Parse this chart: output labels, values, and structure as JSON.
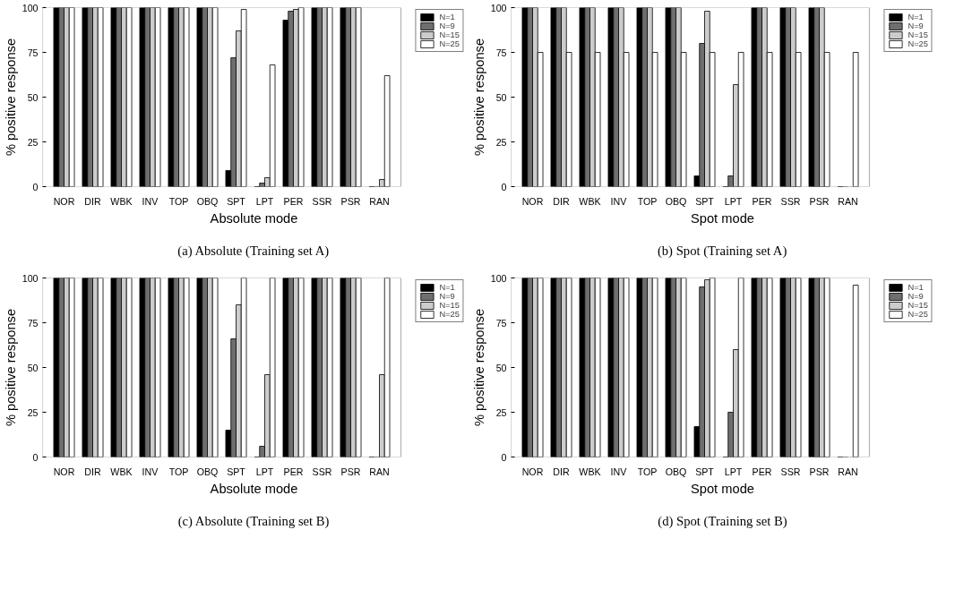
{
  "chart_data": [
    {
      "type": "bar",
      "xlabel": "Absolute mode",
      "ylabel": "% positive response",
      "annotations": [
        "(a) Absolute (Training set A)"
      ],
      "categories": [
        "NOR",
        "DIR",
        "WBK",
        "INV",
        "TOP",
        "OBQ",
        "SPT",
        "LPT",
        "PER",
        "SSR",
        "PSR",
        "RAN"
      ],
      "ylim": [
        0,
        100
      ],
      "yticks": [
        0,
        25,
        50,
        75,
        100
      ],
      "grid": false,
      "legend": "top right",
      "series": [
        {
          "name": "N=1",
          "color": "#000000",
          "values": [
            100,
            100,
            100,
            100,
            100,
            100,
            9,
            0,
            93,
            100,
            100,
            0
          ]
        },
        {
          "name": "N=9",
          "color": "#6e6e6e",
          "values": [
            100,
            100,
            100,
            100,
            100,
            100,
            72,
            2,
            98,
            100,
            100,
            0
          ]
        },
        {
          "name": "N=15",
          "color": "#cccccc",
          "values": [
            100,
            100,
            100,
            100,
            100,
            100,
            87,
            5,
            99,
            100,
            100,
            4
          ]
        },
        {
          "name": "N=25",
          "color": "#ffffff",
          "values": [
            100,
            100,
            100,
            100,
            100,
            100,
            99,
            68,
            100,
            100,
            100,
            62
          ]
        }
      ]
    },
    {
      "type": "bar",
      "xlabel": "Spot mode",
      "ylabel": "% positive response",
      "annotations": [
        "(b) Spot (Training set A)"
      ],
      "categories": [
        "NOR",
        "DIR",
        "WBK",
        "INV",
        "TOP",
        "OBQ",
        "SPT",
        "LPT",
        "PER",
        "SSR",
        "PSR",
        "RAN"
      ],
      "ylim": [
        0,
        100
      ],
      "yticks": [
        0,
        25,
        50,
        75,
        100
      ],
      "grid": false,
      "legend": "top right",
      "series": [
        {
          "name": "N=1",
          "color": "#000000",
          "values": [
            100,
            100,
            100,
            100,
            100,
            100,
            6,
            0,
            100,
            100,
            100,
            0
          ]
        },
        {
          "name": "N=9",
          "color": "#6e6e6e",
          "values": [
            100,
            100,
            100,
            100,
            100,
            100,
            80,
            6,
            100,
            100,
            100,
            0
          ]
        },
        {
          "name": "N=15",
          "color": "#cccccc",
          "values": [
            100,
            100,
            100,
            100,
            100,
            100,
            98,
            57,
            100,
            100,
            100,
            0
          ]
        },
        {
          "name": "N=25",
          "color": "#ffffff",
          "values": [
            75,
            75,
            75,
            75,
            75,
            75,
            75,
            75,
            75,
            75,
            75,
            75
          ]
        }
      ]
    },
    {
      "type": "bar",
      "xlabel": "Absolute mode",
      "ylabel": "% positive response",
      "annotations": [
        "(c) Absolute (Training set B)"
      ],
      "categories": [
        "NOR",
        "DIR",
        "WBK",
        "INV",
        "TOP",
        "OBQ",
        "SPT",
        "LPT",
        "PER",
        "SSR",
        "PSR",
        "RAN"
      ],
      "ylim": [
        0,
        100
      ],
      "yticks": [
        0,
        25,
        50,
        75,
        100
      ],
      "grid": false,
      "legend": "top right",
      "series": [
        {
          "name": "N=1",
          "color": "#000000",
          "values": [
            100,
            100,
            100,
            100,
            100,
            100,
            15,
            0,
            100,
            100,
            100,
            0
          ]
        },
        {
          "name": "N=9",
          "color": "#6e6e6e",
          "values": [
            100,
            100,
            100,
            100,
            100,
            100,
            66,
            6,
            100,
            100,
            100,
            0
          ]
        },
        {
          "name": "N=15",
          "color": "#cccccc",
          "values": [
            100,
            100,
            100,
            100,
            100,
            100,
            85,
            46,
            100,
            100,
            100,
            46
          ]
        },
        {
          "name": "N=25",
          "color": "#ffffff",
          "values": [
            100,
            100,
            100,
            100,
            100,
            100,
            100,
            100,
            100,
            100,
            100,
            100
          ]
        }
      ]
    },
    {
      "type": "bar",
      "xlabel": "Spot mode",
      "ylabel": "% positive response",
      "annotations": [
        "(d) Spot (Training set B)"
      ],
      "categories": [
        "NOR",
        "DIR",
        "WBK",
        "INV",
        "TOP",
        "OBQ",
        "SPT",
        "LPT",
        "PER",
        "SSR",
        "PSR",
        "RAN"
      ],
      "ylim": [
        0,
        100
      ],
      "yticks": [
        0,
        25,
        50,
        75,
        100
      ],
      "grid": false,
      "legend": "top right",
      "series": [
        {
          "name": "N=1",
          "color": "#000000",
          "values": [
            100,
            100,
            100,
            100,
            100,
            100,
            17,
            0,
            100,
            100,
            100,
            0
          ]
        },
        {
          "name": "N=9",
          "color": "#6e6e6e",
          "values": [
            100,
            100,
            100,
            100,
            100,
            100,
            95,
            25,
            100,
            100,
            100,
            0
          ]
        },
        {
          "name": "N=15",
          "color": "#cccccc",
          "values": [
            100,
            100,
            100,
            100,
            100,
            100,
            99,
            60,
            100,
            100,
            100,
            0
          ]
        },
        {
          "name": "N=25",
          "color": "#ffffff",
          "values": [
            100,
            100,
            100,
            100,
            100,
            100,
            100,
            100,
            100,
            100,
            100,
            96
          ]
        }
      ]
    }
  ]
}
